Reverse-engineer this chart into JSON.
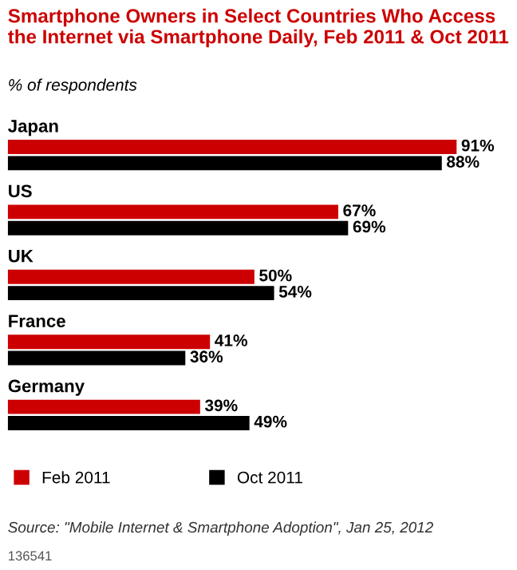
{
  "chart_data": {
    "type": "bar",
    "orientation": "horizontal",
    "title": "Smartphone Owners in Select Countries Who Access the Internet via Smartphone Daily, Feb 2011 & Oct 2011",
    "subtitle": "% of respondents",
    "categories": [
      "Japan",
      "US",
      "UK",
      "France",
      "Germany"
    ],
    "series": [
      {
        "name": "Feb 2011",
        "color": "#cc0000",
        "values": [
          91,
          67,
          50,
          41,
          39
        ],
        "value_labels": [
          "91%",
          "67%",
          "50%",
          "41%",
          "39%"
        ]
      },
      {
        "name": "Oct 2011",
        "color": "#000000",
        "values": [
          88,
          69,
          54,
          36,
          49
        ],
        "value_labels": [
          "88%",
          "69%",
          "54%",
          "36%",
          "49%"
        ]
      }
    ],
    "legend": "bottom left",
    "annotations": [
      "Source: \"Mobile Internet & Smartphone Adoption\", Jan 25, 2012",
      "136541"
    ]
  }
}
